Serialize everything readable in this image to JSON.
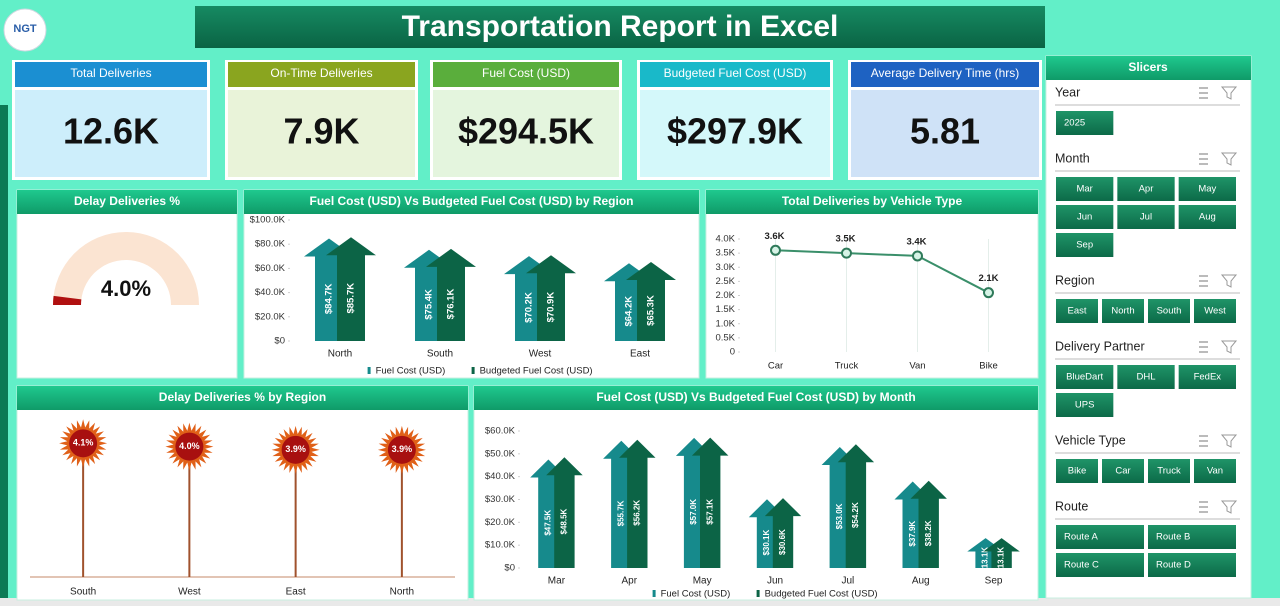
{
  "header": {
    "logo": "NGT",
    "title": "Transportation Report in Excel"
  },
  "kpis": [
    {
      "label": "Total Deliveries",
      "value": "12.6K"
    },
    {
      "label": "On-Time Deliveries",
      "value": "7.9K"
    },
    {
      "label": "Fuel Cost (USD)",
      "value": "$294.5K"
    },
    {
      "label": "Budgeted Fuel Cost (USD)",
      "value": "$297.9K"
    },
    {
      "label": "Average Delivery Time (hrs)",
      "value": "5.81"
    }
  ],
  "slicers": {
    "title": "Slicers",
    "groups": [
      {
        "name": "Year",
        "items": [
          "2025"
        ]
      },
      {
        "name": "Month",
        "items": [
          "Mar",
          "Apr",
          "May",
          "Jun",
          "Jul",
          "Aug",
          "Sep"
        ]
      },
      {
        "name": "Region",
        "items": [
          "East",
          "North",
          "South",
          "West"
        ]
      },
      {
        "name": "Delivery Partner",
        "items": [
          "BlueDart",
          "DHL",
          "FedEx",
          "UPS"
        ]
      },
      {
        "name": "Vehicle Type",
        "items": [
          "Bike",
          "Car",
          "Truck",
          "Van"
        ]
      },
      {
        "name": "Route",
        "items": [
          "Route A",
          "Route B",
          "Route C",
          "Route D"
        ]
      }
    ]
  },
  "chart_data": [
    {
      "type": "gauge",
      "title": "Delay Deliveries %",
      "value": 4.0,
      "value_label": "4.0%",
      "ylim": [
        0,
        100
      ],
      "color": "#b01010"
    },
    {
      "type": "bar",
      "title": "Fuel Cost (USD) Vs Budgeted Fuel Cost (USD) by Region",
      "categories": [
        "North",
        "South",
        "West",
        "East"
      ],
      "series": [
        {
          "name": "Fuel Cost (USD)",
          "color": "#168a8c",
          "values": [
            84700,
            75400,
            70200,
            64200
          ],
          "value_labels": [
            "$84.7K",
            "$75.4K",
            "$70.2K",
            "$64.2K"
          ]
        },
        {
          "name": "Budgeted Fuel Cost (USD)",
          "color": "#0c6446",
          "values": [
            85700,
            76100,
            70900,
            65300
          ],
          "value_labels": [
            "$85.7K",
            "$76.1K",
            "$70.9K",
            "$65.3K"
          ]
        }
      ],
      "ylim": [
        0,
        100000
      ],
      "yticks": [
        {
          "value": 0,
          "label": "$0"
        },
        {
          "value": 20000,
          "label": "$20.0K"
        },
        {
          "value": 40000,
          "label": "$40.0K"
        },
        {
          "value": 60000,
          "label": "$60.0K"
        },
        {
          "value": 80000,
          "label": "$80.0K"
        },
        {
          "value": 100000,
          "label": "$100.0K"
        }
      ]
    },
    {
      "type": "line",
      "title": "Total Deliveries by Vehicle Type",
      "color": "#3a8f6a",
      "categories": [
        "Car",
        "Truck",
        "Van",
        "Bike"
      ],
      "values": [
        3600,
        3500,
        3400,
        2100
      ],
      "value_labels": [
        "3.6K",
        "3.5K",
        "3.4K",
        "2.1K"
      ],
      "ylim": [
        0,
        4000
      ],
      "yticks": [
        0,
        {
          "value": 500,
          "label": "0.5K"
        },
        {
          "value": 1000,
          "label": "1.0K"
        },
        {
          "value": 1500,
          "label": "1.5K"
        },
        {
          "value": 2000,
          "label": "2.0K"
        },
        {
          "value": 2500,
          "label": "2.5K"
        },
        {
          "value": 3000,
          "label": "3.0K"
        },
        {
          "value": 3500,
          "label": "3.5K"
        },
        {
          "value": 4000,
          "label": "4.0K"
        }
      ]
    },
    {
      "type": "lollipop",
      "title": "Delay Deliveries % by Region",
      "color": "#a0522d",
      "categories": [
        "South",
        "West",
        "East",
        "North"
      ],
      "values": [
        4.1,
        4.0,
        3.9,
        3.9
      ],
      "value_labels": [
        "4.1%",
        "4.0%",
        "3.9%",
        "3.9%"
      ],
      "ylim": [
        0,
        5
      ]
    },
    {
      "type": "bar",
      "title": "Fuel Cost (USD) Vs Budgeted Fuel Cost (USD) by Month",
      "categories": [
        "Mar",
        "Apr",
        "May",
        "Jun",
        "Jul",
        "Aug",
        "Sep"
      ],
      "series": [
        {
          "name": "Fuel Cost (USD)",
          "color": "#168a8c",
          "values": [
            47500,
            55700,
            57000,
            30100,
            53000,
            37900,
            13100
          ],
          "value_labels": [
            "$47.5K",
            "$55.7K",
            "$57.0K",
            "$30.1K",
            "$53.0K",
            "$37.9K",
            "$13.1K"
          ]
        },
        {
          "name": "Budgeted Fuel Cost (USD)",
          "color": "#0c6446",
          "values": [
            48500,
            56200,
            57100,
            30600,
            54200,
            38200,
            13100
          ],
          "value_labels": [
            "$48.5K",
            "$56.2K",
            "$57.1K",
            "$30.6K",
            "$54.2K",
            "$38.2K",
            "$13.1K"
          ]
        }
      ],
      "ylim": [
        0,
        60000
      ],
      "yticks": [
        {
          "value": 0,
          "label": "$0"
        },
        {
          "value": 10000,
          "label": "$10.0K"
        },
        {
          "value": 20000,
          "label": "$20.0K"
        },
        {
          "value": 30000,
          "label": "$30.0K"
        },
        {
          "value": 40000,
          "label": "$40.0K"
        },
        {
          "value": 50000,
          "label": "$50.0K"
        },
        {
          "value": 60000,
          "label": "$60.0K"
        }
      ]
    }
  ]
}
